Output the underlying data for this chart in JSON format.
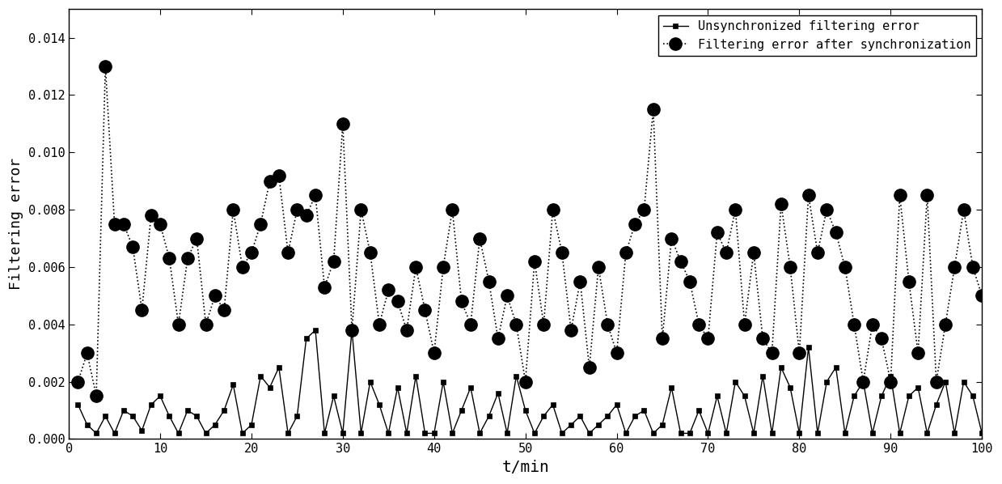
{
  "title": "",
  "xlabel": "t/min",
  "ylabel": "Filtering error",
  "xlim": [
    0,
    100
  ],
  "ylim": [
    0,
    0.015
  ],
  "yticks": [
    0.0,
    0.002,
    0.004,
    0.006,
    0.008,
    0.01,
    0.012,
    0.014
  ],
  "xticks": [
    0,
    10,
    20,
    30,
    40,
    50,
    60,
    70,
    80,
    90,
    100
  ],
  "legend1": "Unsynchronized filtering error",
  "legend2": "Filtering error after synchronization",
  "line1_color": "black",
  "line2_color": "black",
  "series1_x": [
    1,
    2,
    3,
    4,
    5,
    6,
    7,
    8,
    9,
    10,
    11,
    12,
    13,
    14,
    15,
    16,
    17,
    18,
    19,
    20,
    21,
    22,
    23,
    24,
    25,
    26,
    27,
    28,
    29,
    30,
    31,
    32,
    33,
    34,
    35,
    36,
    37,
    38,
    39,
    40,
    41,
    42,
    43,
    44,
    45,
    46,
    47,
    48,
    49,
    50,
    51,
    52,
    53,
    54,
    55,
    56,
    57,
    58,
    59,
    60,
    61,
    62,
    63,
    64,
    65,
    66,
    67,
    68,
    69,
    70,
    71,
    72,
    73,
    74,
    75,
    76,
    77,
    78,
    79,
    80,
    81,
    82,
    83,
    84,
    85,
    86,
    87,
    88,
    89,
    90,
    91,
    92,
    93,
    94,
    95,
    96,
    97,
    98,
    99,
    100
  ],
  "series1_y": [
    0.0012,
    0.0005,
    0.0002,
    0.0008,
    0.0002,
    0.001,
    0.0008,
    0.0003,
    0.0012,
    0.0015,
    0.0008,
    0.0002,
    0.001,
    0.0008,
    0.0002,
    0.0005,
    0.001,
    0.0019,
    0.0002,
    0.0005,
    0.0022,
    0.0018,
    0.0025,
    0.0002,
    0.0008,
    0.0035,
    0.0038,
    0.0002,
    0.0015,
    0.0002,
    0.0038,
    0.0002,
    0.002,
    0.0012,
    0.0002,
    0.0018,
    0.0002,
    0.0022,
    0.0002,
    0.0002,
    0.002,
    0.0002,
    0.001,
    0.0018,
    0.0002,
    0.0008,
    0.0016,
    0.0002,
    0.0022,
    0.001,
    0.0002,
    0.0008,
    0.0012,
    0.0002,
    0.0005,
    0.0008,
    0.0002,
    0.0005,
    0.0008,
    0.0012,
    0.0002,
    0.0008,
    0.001,
    0.0002,
    0.0005,
    0.0018,
    0.0002,
    0.0002,
    0.001,
    0.0002,
    0.0015,
    0.0002,
    0.002,
    0.0015,
    0.0002,
    0.0022,
    0.0002,
    0.0025,
    0.0018,
    0.0002,
    0.0032,
    0.0002,
    0.002,
    0.0025,
    0.0002,
    0.0015,
    0.002,
    0.0002,
    0.0015,
    0.0022,
    0.0002,
    0.0015,
    0.0018,
    0.0002,
    0.0012,
    0.002,
    0.0002,
    0.002,
    0.0015,
    0.0002
  ],
  "series2_x": [
    1,
    2,
    3,
    4,
    5,
    6,
    7,
    8,
    9,
    10,
    11,
    12,
    13,
    14,
    15,
    16,
    17,
    18,
    19,
    20,
    21,
    22,
    23,
    24,
    25,
    26,
    27,
    28,
    29,
    30,
    31,
    32,
    33,
    34,
    35,
    36,
    37,
    38,
    39,
    40,
    41,
    42,
    43,
    44,
    45,
    46,
    47,
    48,
    49,
    50,
    51,
    52,
    53,
    54,
    55,
    56,
    57,
    58,
    59,
    60,
    61,
    62,
    63,
    64,
    65,
    66,
    67,
    68,
    69,
    70,
    71,
    72,
    73,
    74,
    75,
    76,
    77,
    78,
    79,
    80,
    81,
    82,
    83,
    84,
    85,
    86,
    87,
    88,
    89,
    90,
    91,
    92,
    93,
    94,
    95,
    96,
    97,
    98,
    99,
    100
  ],
  "series2_y": [
    0.002,
    0.003,
    0.0015,
    0.013,
    0.0075,
    0.0075,
    0.0067,
    0.0045,
    0.0078,
    0.0075,
    0.0063,
    0.004,
    0.0063,
    0.007,
    0.004,
    0.005,
    0.0045,
    0.008,
    0.006,
    0.0065,
    0.0075,
    0.009,
    0.0092,
    0.0065,
    0.008,
    0.0078,
    0.0085,
    0.0053,
    0.0062,
    0.011,
    0.0038,
    0.008,
    0.0065,
    0.004,
    0.0052,
    0.0048,
    0.0038,
    0.006,
    0.0045,
    0.003,
    0.006,
    0.008,
    0.0048,
    0.004,
    0.007,
    0.0055,
    0.0035,
    0.005,
    0.004,
    0.002,
    0.0062,
    0.004,
    0.008,
    0.0065,
    0.0038,
    0.0055,
    0.0025,
    0.006,
    0.004,
    0.003,
    0.0065,
    0.0075,
    0.008,
    0.0115,
    0.0035,
    0.007,
    0.0062,
    0.0055,
    0.004,
    0.0035,
    0.0072,
    0.0065,
    0.008,
    0.004,
    0.0065,
    0.0035,
    0.003,
    0.0082,
    0.006,
    0.003,
    0.0085,
    0.0065,
    0.008,
    0.0072,
    0.006,
    0.004,
    0.002,
    0.004,
    0.0035,
    0.002,
    0.0085,
    0.0055,
    0.003,
    0.0085,
    0.002,
    0.004,
    0.006,
    0.008,
    0.006,
    0.005
  ]
}
